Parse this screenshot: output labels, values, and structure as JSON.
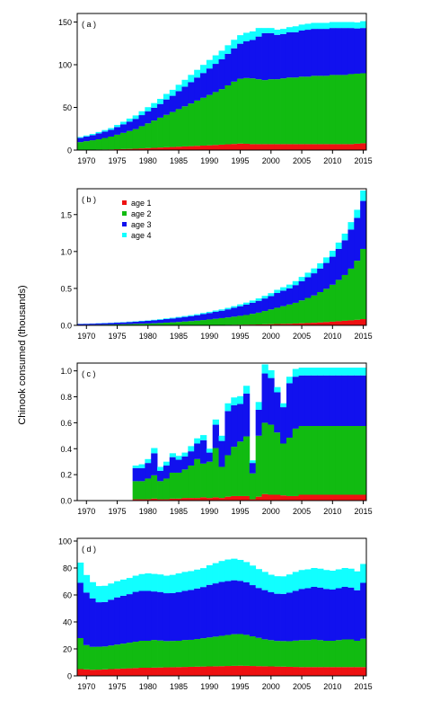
{
  "ylabel": "Chinook consumed (thousands)",
  "colors": {
    "age1": "#ee1111",
    "age2": "#11bb11",
    "age3": "#1111ee",
    "age4": "#11ffff"
  },
  "legend": {
    "placement": "top-left (panel b)",
    "entries": [
      "age  1",
      "age  2",
      "age  3",
      "age  4"
    ]
  },
  "chart_data": [
    {
      "panel": "( a )",
      "type": "bar",
      "stacked": true,
      "x_start": 1969,
      "x_end": 2015,
      "xticks": [
        "1970",
        "1975",
        "1980",
        "1985",
        "1990",
        "1995",
        "2000",
        "2005",
        "2010",
        "2015"
      ],
      "yticks": [
        "0",
        "50",
        "100",
        "150"
      ],
      "ylim": [
        0,
        160
      ],
      "series": [
        {
          "name": "age  1",
          "values": [
            0.3,
            0.4,
            0.5,
            0.6,
            0.7,
            0.8,
            1,
            1.2,
            1.4,
            1.6,
            2,
            2.3,
            2.6,
            3,
            3.3,
            3.6,
            4,
            4.3,
            4.6,
            5,
            5.3,
            5.6,
            6,
            6.4,
            6.8,
            7.2,
            7.6,
            7.4,
            7,
            7,
            7,
            7,
            7,
            7,
            7,
            7,
            7,
            7,
            7,
            7,
            7,
            7,
            7,
            7,
            7,
            7.5,
            8
          ]
        },
        {
          "name": "age  2",
          "values": [
            9,
            10,
            11,
            12,
            13.5,
            15,
            17,
            19,
            21,
            23,
            26,
            29,
            32,
            35,
            38,
            41,
            44,
            47,
            50,
            53,
            56,
            59,
            62,
            65,
            69,
            73,
            76,
            77,
            77,
            76,
            75,
            76,
            76,
            77,
            78,
            78,
            79,
            79,
            80,
            80,
            80,
            81,
            81,
            81,
            82,
            82,
            82
          ]
        },
        {
          "name": "age  3",
          "values": [
            5,
            5.5,
            6,
            7,
            7.5,
            8,
            9,
            10,
            11,
            12,
            13,
            14,
            15,
            16,
            18,
            19,
            21,
            23,
            25,
            27,
            29,
            31,
            33,
            35,
            37,
            39,
            41,
            43,
            45,
            50,
            55,
            54,
            52,
            52,
            53,
            53,
            54,
            55,
            55,
            55,
            55,
            55,
            55,
            55,
            54,
            53,
            53
          ]
        },
        {
          "name": "age  4",
          "values": [
            1,
            1.2,
            1.4,
            1.6,
            1.8,
            2,
            2.5,
            3,
            3.5,
            4,
            4.5,
            5,
            5.5,
            6,
            6.5,
            7,
            7.5,
            8,
            8.5,
            9,
            9.5,
            10,
            10,
            10,
            10,
            10,
            10,
            10,
            10,
            10,
            6,
            6,
            6,
            6,
            6,
            7,
            7,
            7,
            7,
            7,
            7,
            7,
            7,
            7,
            7,
            7,
            8
          ]
        }
      ]
    },
    {
      "panel": "( b )",
      "type": "bar",
      "stacked": true,
      "x_start": 1969,
      "x_end": 2015,
      "xticks": [
        "1970",
        "1975",
        "1980",
        "1985",
        "1990",
        "1995",
        "2000",
        "2005",
        "2010",
        "2015"
      ],
      "yticks": [
        "0.0",
        "0.5",
        "1.0",
        "1.5"
      ],
      "ylim": [
        0,
        1.85
      ],
      "series": [
        {
          "name": "age  1",
          "values": [
            0.001,
            0.001,
            0.001,
            0.001,
            0.001,
            0.001,
            0.001,
            0.001,
            0.001,
            0.002,
            0.002,
            0.002,
            0.002,
            0.002,
            0.003,
            0.003,
            0.003,
            0.004,
            0.004,
            0.004,
            0.005,
            0.005,
            0.006,
            0.006,
            0.007,
            0.008,
            0.009,
            0.01,
            0.011,
            0.012,
            0.014,
            0.016,
            0.018,
            0.02,
            0.022,
            0.025,
            0.028,
            0.031,
            0.035,
            0.04,
            0.045,
            0.05,
            0.056,
            0.062,
            0.068,
            0.075,
            0.085
          ]
        },
        {
          "name": "age  2",
          "values": [
            0.005,
            0.006,
            0.007,
            0.008,
            0.009,
            0.01,
            0.012,
            0.014,
            0.016,
            0.018,
            0.02,
            0.023,
            0.026,
            0.03,
            0.034,
            0.038,
            0.043,
            0.048,
            0.054,
            0.06,
            0.067,
            0.075,
            0.083,
            0.092,
            0.1,
            0.11,
            0.12,
            0.13,
            0.145,
            0.16,
            0.18,
            0.2,
            0.22,
            0.24,
            0.26,
            0.28,
            0.31,
            0.34,
            0.37,
            0.41,
            0.45,
            0.5,
            0.56,
            0.62,
            0.7,
            0.8,
            0.95
          ]
        },
        {
          "name": "age  3",
          "values": [
            0.012,
            0.013,
            0.015,
            0.017,
            0.019,
            0.021,
            0.023,
            0.025,
            0.028,
            0.03,
            0.033,
            0.036,
            0.04,
            0.044,
            0.048,
            0.052,
            0.057,
            0.062,
            0.067,
            0.073,
            0.08,
            0.087,
            0.095,
            0.1,
            0.11,
            0.12,
            0.13,
            0.14,
            0.15,
            0.16,
            0.17,
            0.18,
            0.2,
            0.21,
            0.22,
            0.24,
            0.26,
            0.28,
            0.3,
            0.32,
            0.35,
            0.38,
            0.42,
            0.47,
            0.53,
            0.58,
            0.65
          ]
        },
        {
          "name": "age  4",
          "values": [
            0.002,
            0.002,
            0.002,
            0.003,
            0.003,
            0.003,
            0.004,
            0.004,
            0.005,
            0.005,
            0.006,
            0.006,
            0.007,
            0.008,
            0.009,
            0.01,
            0.011,
            0.012,
            0.013,
            0.014,
            0.015,
            0.016,
            0.017,
            0.018,
            0.02,
            0.022,
            0.025,
            0.028,
            0.03,
            0.033,
            0.036,
            0.04,
            0.043,
            0.046,
            0.05,
            0.054,
            0.058,
            0.062,
            0.066,
            0.07,
            0.075,
            0.08,
            0.085,
            0.09,
            0.1,
            0.11,
            0.14
          ]
        }
      ]
    },
    {
      "panel": "( c )",
      "type": "bar",
      "stacked": true,
      "x_start": 1969,
      "x_end": 2015,
      "xticks": [
        "1970",
        "1975",
        "1980",
        "1985",
        "1990",
        "1995",
        "2000",
        "2005",
        "2010",
        "2015"
      ],
      "yticks": [
        "0.0",
        "0.2",
        "0.4",
        "0.6",
        "0.8",
        "1.0"
      ],
      "ylim": [
        0,
        1.06
      ],
      "series": [
        {
          "name": "age  1",
          "values": [
            0,
            0,
            0,
            0,
            0,
            0,
            0,
            0,
            0,
            0.01,
            0.01,
            0.01,
            0.015,
            0.01,
            0.01,
            0.015,
            0.015,
            0.02,
            0.02,
            0.02,
            0.025,
            0.02,
            0.025,
            0.02,
            0.03,
            0.035,
            0.035,
            0.035,
            0.01,
            0.03,
            0.05,
            0.045,
            0.045,
            0.04,
            0.035,
            0.035,
            0.045,
            0.045,
            0.045,
            0.045,
            0.045,
            0.045,
            0.045,
            0.045,
            0.045,
            0.045,
            0.045
          ]
        },
        {
          "name": "age  2",
          "values": [
            0,
            0,
            0,
            0,
            0,
            0,
            0,
            0,
            0,
            0.14,
            0.14,
            0.16,
            0.18,
            0.14,
            0.16,
            0.2,
            0.2,
            0.22,
            0.25,
            0.3,
            0.26,
            0.28,
            0.38,
            0.24,
            0.32,
            0.38,
            0.42,
            0.46,
            0.2,
            0.47,
            0.55,
            0.54,
            0.48,
            0.4,
            0.45,
            0.52,
            0.53,
            0.53,
            0.53,
            0.53,
            0.53,
            0.53,
            0.53,
            0.53,
            0.53,
            0.53,
            0.53
          ]
        },
        {
          "name": "age  3",
          "values": [
            0,
            0,
            0,
            0,
            0,
            0,
            0,
            0,
            0,
            0.1,
            0.1,
            0.12,
            0.17,
            0.08,
            0.1,
            0.12,
            0.1,
            0.1,
            0.11,
            0.12,
            0.18,
            0.07,
            0.18,
            0.2,
            0.34,
            0.32,
            0.29,
            0.33,
            0.08,
            0.2,
            0.38,
            0.36,
            0.31,
            0.28,
            0.42,
            0.4,
            0.39,
            0.39,
            0.39,
            0.39,
            0.39,
            0.39,
            0.39,
            0.39,
            0.39,
            0.39,
            0.39
          ]
        },
        {
          "name": "age  4",
          "values": [
            0,
            0,
            0,
            0,
            0,
            0,
            0,
            0,
            0,
            0.02,
            0.03,
            0.03,
            0.04,
            0.03,
            0.03,
            0.03,
            0.03,
            0.03,
            0.04,
            0.04,
            0.04,
            0.03,
            0.04,
            0.04,
            0.06,
            0.06,
            0.06,
            0.06,
            0.02,
            0.06,
            0.07,
            0.06,
            0.04,
            0.03,
            0.05,
            0.06,
            0.06,
            0.06,
            0.06,
            0.06,
            0.06,
            0.06,
            0.06,
            0.06,
            0.06,
            0.06,
            0.06
          ]
        }
      ]
    },
    {
      "panel": "( d )",
      "type": "bar",
      "stacked": true,
      "x_start": 1969,
      "x_end": 2015,
      "xticks": [
        "1970",
        "1975",
        "1980",
        "1985",
        "1990",
        "1995",
        "2000",
        "2005",
        "2010",
        "2015"
      ],
      "yticks": [
        "0",
        "20",
        "40",
        "60",
        "80",
        "100"
      ],
      "ylim": [
        0,
        102
      ],
      "series": [
        {
          "name": "age  1",
          "values": [
            5,
            4.8,
            4.5,
            4.6,
            4.8,
            5,
            5.2,
            5.4,
            5.6,
            5.8,
            6,
            6,
            6.1,
            6.2,
            6.3,
            6.4,
            6.5,
            6.6,
            6.7,
            6.8,
            6.9,
            7,
            7.1,
            7.2,
            7.3,
            7.4,
            7.5,
            7.4,
            7.3,
            7.2,
            7.1,
            7,
            6.9,
            6.8,
            6.7,
            6.6,
            6.5,
            6.5,
            6.5,
            6.5,
            6.5,
            6.5,
            6.5,
            6.5,
            6.5,
            6.5,
            6.5
          ]
        },
        {
          "name": "age  2",
          "values": [
            23,
            18,
            17,
            17,
            17,
            17.5,
            18,
            18.5,
            19,
            19.5,
            20,
            20,
            20.5,
            20,
            19.5,
            19.5,
            19.5,
            20,
            20,
            20.5,
            21,
            21.5,
            22,
            22.5,
            23,
            23.5,
            23.5,
            23,
            22,
            21,
            20,
            19.5,
            19,
            19,
            19,
            19.5,
            20,
            20,
            20.5,
            20,
            19.5,
            19.5,
            20,
            20.5,
            20.5,
            19.5,
            21
          ]
        },
        {
          "name": "age  3",
          "values": [
            41,
            39,
            36,
            33,
            33,
            34,
            35,
            35.5,
            36,
            37,
            37,
            37,
            36,
            36,
            35.5,
            35.5,
            36,
            36.5,
            37,
            37.5,
            38,
            39,
            39.5,
            40,
            40,
            40,
            39.5,
            39,
            38,
            37,
            36.5,
            35.5,
            35,
            35,
            36,
            37,
            38,
            38.5,
            39,
            39,
            38.5,
            38,
            38.5,
            39,
            38.5,
            37.5,
            41.5
          ]
        },
        {
          "name": "age  4",
          "values": [
            15,
            13,
            12,
            12,
            12,
            12,
            12,
            12,
            12,
            12,
            12.5,
            13,
            13,
            13,
            13,
            13.5,
            14,
            14,
            14,
            14,
            14,
            14.5,
            15,
            15.5,
            16,
            16,
            15.5,
            15,
            14.5,
            14,
            13.5,
            13,
            13,
            13,
            13.5,
            14,
            14,
            14,
            14,
            14,
            14,
            14,
            14,
            14,
            14,
            14,
            14
          ]
        }
      ]
    }
  ]
}
